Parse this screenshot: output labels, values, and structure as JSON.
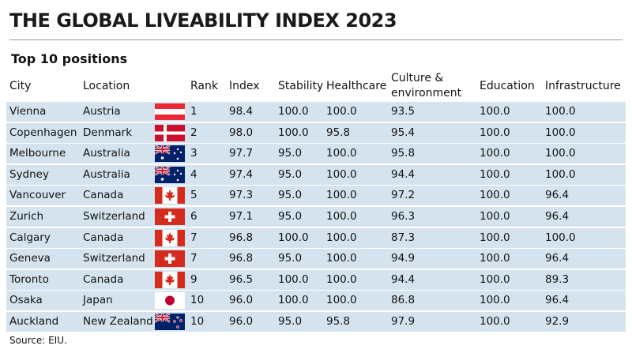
{
  "header": {
    "title": "THE GLOBAL LIVEABILITY INDEX 2023",
    "subtitle": "Top 10 positions"
  },
  "table": {
    "columns": [
      "City",
      "Location",
      "Rank",
      "Index",
      "Stability",
      "Healthcare",
      "Culture & environment",
      "Education",
      "Infrastructure"
    ],
    "rows": [
      [
        "Vienna",
        "Austria",
        "1",
        "98.4",
        "100.0",
        "100.0",
        "93.5",
        "100.0",
        "100.0"
      ],
      [
        "Copenhagen",
        "Denmark",
        "2",
        "98.0",
        "100.0",
        "95.8",
        "95.4",
        "100.0",
        "100.0"
      ],
      [
        "Melbourne",
        "Australia",
        "3",
        "97.7",
        "95.0",
        "100.0",
        "95.8",
        "100.0",
        "100.0"
      ],
      [
        "Sydney",
        "Australia",
        "4",
        "97.4",
        "95.0",
        "100.0",
        "94.4",
        "100.0",
        "100.0"
      ],
      [
        "Vancouver",
        "Canada",
        "5",
        "97.3",
        "95.0",
        "100.0",
        "97.2",
        "100.0",
        "96.4"
      ],
      [
        "Zurich",
        "Switzerland",
        "6",
        "97.1",
        "95.0",
        "100.0",
        "96.3",
        "100.0",
        "96.4"
      ],
      [
        "Calgary",
        "Canada",
        "7",
        "96.8",
        "100.0",
        "100.0",
        "87.3",
        "100.0",
        "100.0"
      ],
      [
        "Geneva",
        "Switzerland",
        "7",
        "96.8",
        "95.0",
        "100.0",
        "94.9",
        "100.0",
        "96.4"
      ],
      [
        "Toronto",
        "Canada",
        "9",
        "96.5",
        "100.0",
        "100.0",
        "94.4",
        "100.0",
        "89.3"
      ],
      [
        "Osaka",
        "Japan",
        "10",
        "96.0",
        "100.0",
        "100.0",
        "86.8",
        "100.0",
        "96.4"
      ],
      [
        "Auckland",
        "New Zealand",
        "10",
        "96.0",
        "95.0",
        "95.8",
        "97.9",
        "100.0",
        "92.9"
      ]
    ]
  },
  "footer": {
    "source": "Source: EIU."
  }
}
